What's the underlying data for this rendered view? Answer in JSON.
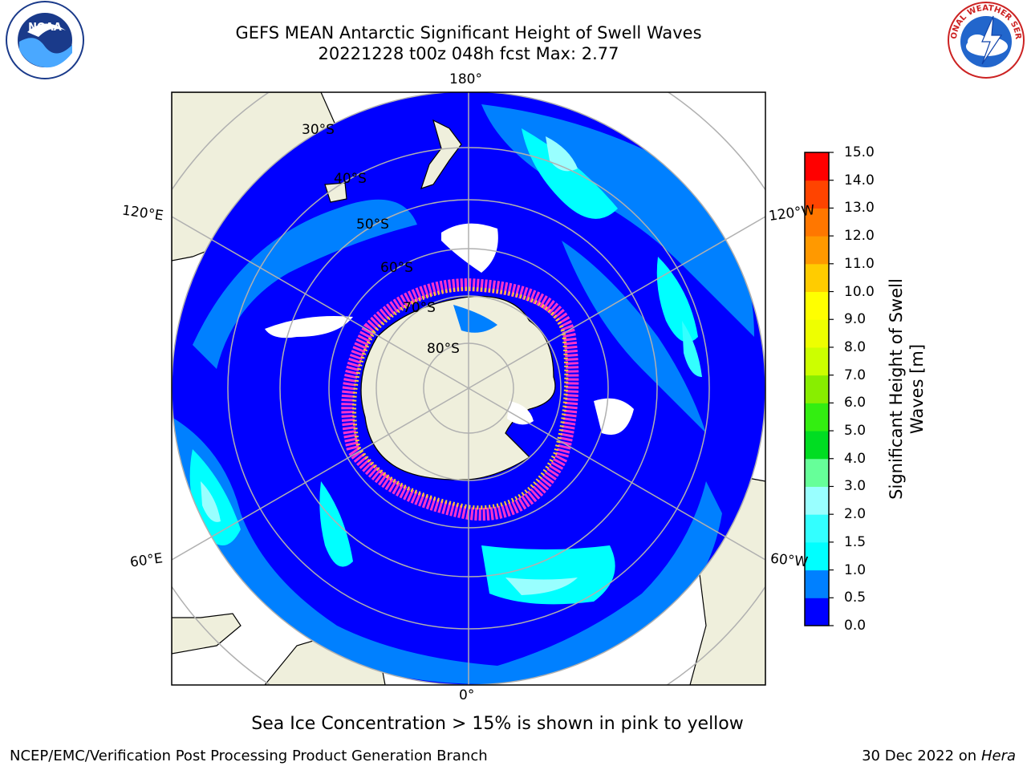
{
  "header": {
    "title": "GEFS MEAN Antarctic Significant Height of Swell Waves",
    "subtitle": "20221228 t00z 048h fcst   Max: 2.77"
  },
  "logos": {
    "left": "noaa-logo",
    "right": "nws-logo",
    "left_text": "NOAA",
    "right_text": "NATIONAL WEATHER SERVICE"
  },
  "map": {
    "projection": "south-polar-stereographic",
    "center_latitude": -90,
    "colors": {
      "land": "#efefdc",
      "ocean_deep": "#0000ff",
      "ocean_mid": "#0080ff",
      "ocean_cyan": "#00ffff",
      "ice_edge_pink": "#ff33cc",
      "ice_edge_yellow": "#ffcc33"
    },
    "longitude_labels": [
      {
        "name": "lon-label-180",
        "text": "180°"
      },
      {
        "name": "lon-label-120w",
        "text": "120°W"
      },
      {
        "name": "lon-label-60w",
        "text": "60°W"
      },
      {
        "name": "lon-label-0",
        "text": "0°"
      },
      {
        "name": "lon-label-60e",
        "text": "60°E"
      },
      {
        "name": "lon-label-120e",
        "text": "120°E"
      }
    ],
    "latitude_labels": [
      {
        "name": "lat-label-30s",
        "text": "30°S"
      },
      {
        "name": "lat-label-40s",
        "text": "40°S"
      },
      {
        "name": "lat-label-50s",
        "text": "50°S"
      },
      {
        "name": "lat-label-60s",
        "text": "60°S"
      },
      {
        "name": "lat-label-70s",
        "text": "70°S"
      },
      {
        "name": "lat-label-80s",
        "text": "80°S"
      }
    ]
  },
  "colorbar": {
    "label": "Significant Height of Swell Waves [m]",
    "ticks": [
      "0.0",
      "0.5",
      "1.0",
      "1.5",
      "2.0",
      "3.0",
      "4.0",
      "5.0",
      "6.0",
      "7.0",
      "8.0",
      "9.0",
      "10.0",
      "11.0",
      "12.0",
      "13.0",
      "14.0",
      "15.0"
    ],
    "colors": [
      "#0000ff",
      "#0080ff",
      "#00ffff",
      "#33ffff",
      "#99ffff",
      "#66ff99",
      "#00dd22",
      "#33ee11",
      "#88ee00",
      "#ccff00",
      "#eeff00",
      "#ffff00",
      "#ffcc00",
      "#ff9900",
      "#ff7700",
      "#ff4400",
      "#ff0000"
    ]
  },
  "caption": "Sea Ice Concentration > 15% is shown in pink to yellow",
  "footer": {
    "left": "NCEP/EMC/Verification Post Processing Product Generation Branch",
    "right_date": "30 Dec 2022 on",
    "right_host": "Hera"
  }
}
